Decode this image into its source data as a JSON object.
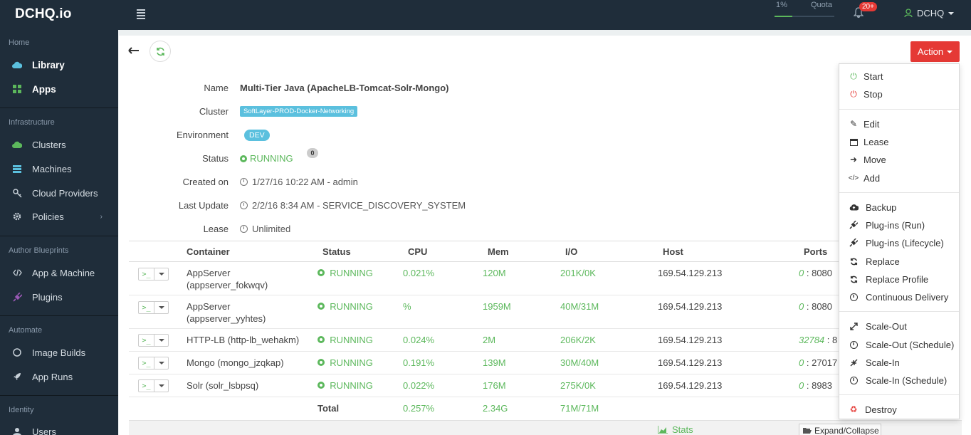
{
  "brand": "DCHQ.io",
  "topbar": {
    "quota_percent": "1%",
    "quota_label": "Quota",
    "quota_fill": 0.3,
    "notifications": "20+",
    "user": "DCHQ"
  },
  "sidebar": {
    "home_label": "Home",
    "home_items": [
      {
        "label": "Library",
        "icon": "cloud-icon"
      },
      {
        "label": "Apps",
        "icon": "grid-icon"
      }
    ],
    "infra_label": "Infrastructure",
    "infra_items": [
      {
        "label": "Clusters"
      },
      {
        "label": "Machines"
      },
      {
        "label": "Cloud Providers"
      },
      {
        "label": "Policies"
      }
    ],
    "author_label": "Author Blueprints",
    "author_items": [
      {
        "label": "App & Machine"
      },
      {
        "label": "Plugins"
      }
    ],
    "automate_label": "Automate",
    "automate_items": [
      {
        "label": "Image Builds"
      },
      {
        "label": "App Runs"
      }
    ],
    "identity_label": "Identity",
    "identity_items": [
      {
        "label": "Users"
      }
    ]
  },
  "action_label": "Action",
  "details": {
    "name_label": "Name",
    "name": "Multi-Tier Java (ApacheLB-Tomcat-Solr-Mongo)",
    "cluster_label": "Cluster",
    "cluster": "SoftLayer-PROD-Docker-Networking",
    "environment_label": "Environment",
    "environment": "DEV",
    "status_label": "Status",
    "status": "RUNNING",
    "status_count": "0",
    "created_label": "Created on",
    "created": "1/27/16 10:22 AM - admin",
    "update_label": "Last Update",
    "update": "2/2/16 8:34 AM - SERVICE_DISCOVERY_SYSTEM",
    "lease_label": "Lease",
    "lease": "Unlimited"
  },
  "table": {
    "headers": {
      "container": "Container",
      "status": "Status",
      "cpu": "CPU",
      "mem": "Mem",
      "io": "I/O",
      "host": "Host",
      "ports": "Ports"
    },
    "rows": [
      {
        "line1": "AppServer",
        "line2": "(appserver_fokwqv)",
        "status": "RUNNING",
        "cpu": "0.021%",
        "mem": "120M",
        "io": "201K/0K",
        "host": "169.54.129.213",
        "port_a": "0",
        "port_b": ": 8080"
      },
      {
        "line1": "AppServer",
        "line2": "(appserver_yyhtes)",
        "status": "RUNNING",
        "cpu": "%",
        "mem": "1959M",
        "io": "40M/31M",
        "host": "169.54.129.213",
        "port_a": "0",
        "port_b": ": 8080"
      },
      {
        "line1": "HTTP-LB (http-lb_wehakm)",
        "line2": "",
        "status": "RUNNING",
        "cpu": "0.024%",
        "mem": "2M",
        "io": "206K/2K",
        "host": "169.54.129.213",
        "port_a": "32784",
        "port_b": ": 8"
      },
      {
        "line1": "Mongo (mongo_jzqkap)",
        "line2": "",
        "status": "RUNNING",
        "cpu": "0.191%",
        "mem": "139M",
        "io": "30M/40M",
        "host": "169.54.129.213",
        "port_a": "0",
        "port_b": ": 27017"
      },
      {
        "line1": "Solr (solr_lsbpsq)",
        "line2": "",
        "status": "RUNNING",
        "cpu": "0.022%",
        "mem": "176M",
        "io": "275K/0K",
        "host": "169.54.129.213",
        "port_a": "0",
        "port_b": ": 8983"
      }
    ],
    "total": {
      "label": "Total",
      "cpu": "0.257%",
      "mem": "2.34G",
      "io": "71M/71M"
    }
  },
  "footer": {
    "stats": "Stats",
    "expand": "Expand/Collapse"
  },
  "dropdown": [
    {
      "label": "Start",
      "icon": "power-icon",
      "color": "#5cb85c"
    },
    {
      "label": "Stop",
      "icon": "power-icon",
      "color": "#e53935"
    },
    {
      "label": "Edit",
      "icon": "edit-icon"
    },
    {
      "label": "Lease",
      "icon": "calendar-icon"
    },
    {
      "label": "Move",
      "icon": "arrow-right-icon"
    },
    {
      "label": "Add",
      "icon": "code-icon"
    },
    {
      "label": "Backup",
      "icon": "cloud-upload-icon"
    },
    {
      "label": "Plug-ins (Run)",
      "icon": "plug-icon"
    },
    {
      "label": "Plug-ins (Lifecycle)",
      "icon": "plug-icon"
    },
    {
      "label": "Replace",
      "icon": "refresh-icon"
    },
    {
      "label": "Replace Profile",
      "icon": "refresh-icon"
    },
    {
      "label": "Continuous Delivery",
      "icon": "clock-icon"
    },
    {
      "label": "Scale-Out",
      "icon": "expand-icon"
    },
    {
      "label": "Scale-Out (Schedule)",
      "icon": "clock-icon"
    },
    {
      "label": "Scale-In",
      "icon": "compress-icon"
    },
    {
      "label": "Scale-In (Schedule)",
      "icon": "clock-icon"
    },
    {
      "label": "Destroy",
      "icon": "recycle-icon",
      "color": "#e53935"
    }
  ]
}
